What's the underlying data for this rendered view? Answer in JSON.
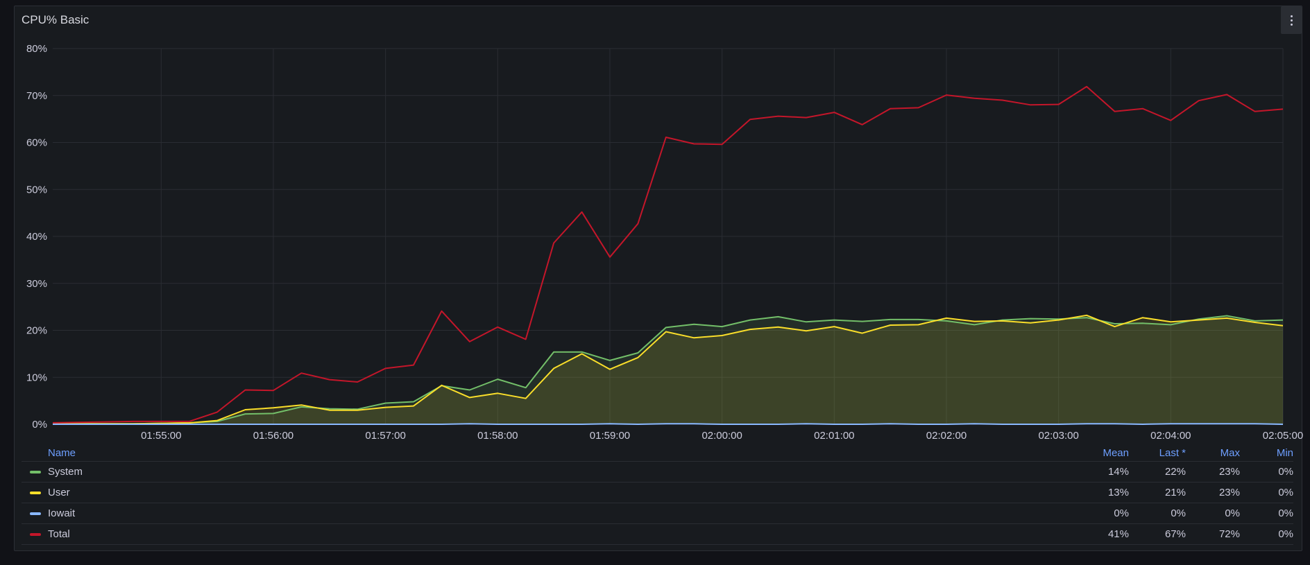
{
  "panel": {
    "title": "CPU% Basic",
    "menu_icon": "kebab-menu-icon"
  },
  "legend": {
    "headers": {
      "name": "Name",
      "mean": "Mean",
      "last": "Last *",
      "max": "Max",
      "min": "Min"
    },
    "rows": [
      {
        "name": "System",
        "color": "#73bf69",
        "mean": "14%",
        "last": "22%",
        "max": "23%",
        "min": "0%"
      },
      {
        "name": "User",
        "color": "#fade2a",
        "mean": "13%",
        "last": "21%",
        "max": "23%",
        "min": "0%"
      },
      {
        "name": "Iowait",
        "color": "#8ab8ff",
        "mean": "0%",
        "last": "0%",
        "max": "0%",
        "min": "0%"
      },
      {
        "name": "Total",
        "color": "#c4162a",
        "mean": "41%",
        "last": "67%",
        "max": "72%",
        "min": "0%"
      }
    ]
  },
  "chart_data": {
    "type": "line",
    "xlabel": "",
    "ylabel": "",
    "ylim": [
      0,
      80
    ],
    "y_ticks": [
      "0%",
      "10%",
      "20%",
      "30%",
      "40%",
      "50%",
      "60%",
      "70%",
      "80%"
    ],
    "x_range": [
      "01:54:02",
      "02:05:00"
    ],
    "x_ticks": [
      "01:55:00",
      "01:56:00",
      "01:57:00",
      "01:58:00",
      "01:59:00",
      "02:00:00",
      "02:01:00",
      "02:02:00",
      "02:03:00",
      "02:04:00",
      "02:05:00"
    ],
    "x": [
      "01:54:00",
      "01:54:15",
      "01:54:30",
      "01:54:45",
      "01:55:00",
      "01:55:15",
      "01:55:30",
      "01:55:45",
      "01:56:00",
      "01:56:15",
      "01:56:30",
      "01:56:45",
      "01:57:00",
      "01:57:15",
      "01:57:30",
      "01:57:45",
      "01:58:00",
      "01:58:15",
      "01:58:30",
      "01:58:45",
      "01:59:00",
      "01:59:15",
      "01:59:30",
      "01:59:45",
      "02:00:00",
      "02:00:15",
      "02:00:30",
      "02:00:45",
      "02:01:00",
      "02:01:15",
      "02:01:30",
      "02:01:45",
      "02:02:00",
      "02:02:15",
      "02:02:30",
      "02:02:45",
      "02:03:00",
      "02:03:15",
      "02:03:30",
      "02:03:45",
      "02:04:00",
      "02:04:15",
      "02:04:30",
      "02:04:45",
      "02:05:00"
    ],
    "grid": true,
    "legend_position": "bottom",
    "series": [
      {
        "name": "System",
        "color": "#73bf69",
        "fill": true,
        "values": [
          0.1,
          0.1,
          0.1,
          0.1,
          0.2,
          0.3,
          0.6,
          2.2,
          2.3,
          3.7,
          3.3,
          3.2,
          4.5,
          4.8,
          8.2,
          7.3,
          9.6,
          7.8,
          15.4,
          15.4,
          13.6,
          15.2,
          20.6,
          21.3,
          20.8,
          22.2,
          22.9,
          21.8,
          22.2,
          21.9,
          22.3,
          22.3,
          22.0,
          21.2,
          22.2,
          22.5,
          22.4,
          22.7,
          21.4,
          21.5,
          21.2,
          22.4,
          23.1,
          22.0,
          22.2
        ]
      },
      {
        "name": "User",
        "color": "#fade2a",
        "fill": true,
        "values": [
          0.1,
          0.1,
          0.1,
          0.1,
          0.2,
          0.3,
          0.8,
          3.1,
          3.5,
          4.1,
          3.0,
          3.0,
          3.6,
          3.9,
          8.3,
          5.7,
          6.6,
          5.5,
          11.9,
          15.0,
          11.7,
          14.2,
          19.7,
          18.4,
          18.9,
          20.2,
          20.7,
          19.9,
          20.8,
          19.4,
          21.1,
          21.2,
          22.6,
          21.9,
          22.0,
          21.6,
          22.2,
          23.2,
          20.8,
          22.7,
          21.8,
          22.2,
          22.6,
          21.7,
          21.0
        ]
      },
      {
        "name": "Iowait",
        "color": "#8ab8ff",
        "fill": false,
        "values": [
          0.0,
          0.0,
          0.0,
          0.0,
          0.0,
          0.0,
          0.0,
          0.0,
          0.0,
          0.0,
          0.0,
          0.0,
          0.0,
          0.0,
          0.0,
          0.1,
          0.0,
          0.0,
          0.0,
          0.0,
          0.1,
          0.0,
          0.1,
          0.1,
          0.0,
          0.0,
          0.0,
          0.1,
          0.0,
          0.0,
          0.1,
          0.0,
          0.0,
          0.1,
          0.0,
          0.0,
          0.0,
          0.1,
          0.1,
          0.0,
          0.1,
          0.1,
          0.1,
          0.1,
          0.0
        ]
      },
      {
        "name": "Total",
        "color": "#c4162a",
        "fill": false,
        "values": [
          0.3,
          0.4,
          0.5,
          0.6,
          0.6,
          0.6,
          2.6,
          7.3,
          7.2,
          10.9,
          9.5,
          9.0,
          11.9,
          12.6,
          24.1,
          17.6,
          20.7,
          18.1,
          38.6,
          45.2,
          35.6,
          42.7,
          61.1,
          59.7,
          59.6,
          64.9,
          65.6,
          65.3,
          66.4,
          63.8,
          67.2,
          67.4,
          70.1,
          69.4,
          69.0,
          68.0,
          68.1,
          71.9,
          66.6,
          67.2,
          64.7,
          68.9,
          70.2,
          66.6,
          67.1
        ]
      }
    ]
  }
}
